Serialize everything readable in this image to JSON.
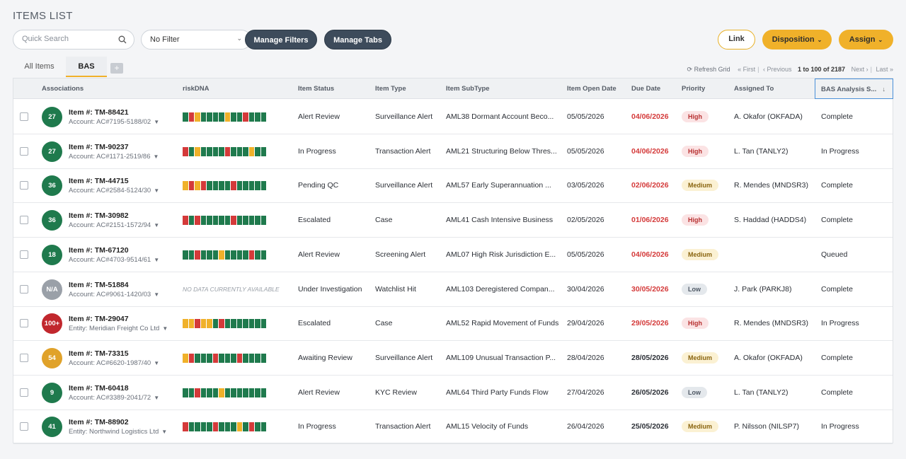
{
  "page_title": "ITEMS LIST",
  "toolbar": {
    "search_placeholder": "Quick Search",
    "filter_value": "No Filter",
    "manage_filters": "Manage Filters",
    "manage_tabs": "Manage Tabs",
    "link": "Link",
    "disposition": "Disposition",
    "assign": "Assign"
  },
  "tabs": [
    {
      "label": "All Items"
    },
    {
      "label": "BAS"
    }
  ],
  "tab_add": "+",
  "pager": {
    "refresh": "Refresh Grid",
    "first": "« First",
    "previous": "‹ Previous",
    "range": "1 to 100 of 2187",
    "next": "Next ›",
    "last": "Last »"
  },
  "columns": {
    "associations": "Associations",
    "riskdna": "riskDNA",
    "status": "Item Status",
    "type": "Item Type",
    "subtype": "Item SubType",
    "open_date": "Item Open Date",
    "due_date": "Due Date",
    "priority": "Priority",
    "assigned": "Assigned To",
    "bas": "BAS Analysis S..."
  },
  "colors": {
    "green": "#1f7a4d",
    "red": "#d43a3a",
    "amber": "#f0b12a",
    "grey": "#9aa0a8",
    "dark_red": "#c1272d",
    "gold_badge": "#e0a22a"
  },
  "rows": [
    {
      "score": "27",
      "badge_color": "#1f7a4d",
      "item": "Item #: TM-88421",
      "account": "Account: AC#7195-5188/02",
      "dna": "GRAGGGGAGGRGGG",
      "status": "Alert Review",
      "type": "Surveillance Alert",
      "subtype": "AML38 Dormant Account Beco...",
      "open": "05/05/2026",
      "due": "04/06/2026",
      "due_red": true,
      "priority": "High",
      "assigned": "A. Okafor (OKFADA)",
      "bas": "Complete"
    },
    {
      "score": "27",
      "badge_color": "#1f7a4d",
      "item": "Item #: TM-90237",
      "account": "Account: AC#1171-2519/86",
      "dna": "RGAGGGGRGGGAGG",
      "status": "In Progress",
      "type": "Transaction Alert",
      "subtype": "AML21 Structuring Below Thres...",
      "open": "05/05/2026",
      "due": "04/06/2026",
      "due_red": true,
      "priority": "High",
      "assigned": "L. Tan (TANLY2)",
      "bas": "In Progress"
    },
    {
      "score": "36",
      "badge_color": "#1f7a4d",
      "item": "Item #: TM-44715",
      "account": "Account: AC#2584-5124/30",
      "dna": "ARARGGGGRGGGGG",
      "status": "Pending QC",
      "type": "Surveillance Alert",
      "subtype": "AML57 Early Superannuation ...",
      "open": "03/05/2026",
      "due": "02/06/2026",
      "due_red": true,
      "priority": "Medium",
      "assigned": "R. Mendes (MNDSR3)",
      "bas": "Complete"
    },
    {
      "score": "36",
      "badge_color": "#1f7a4d",
      "item": "Item #: TM-30982",
      "account": "Account: AC#2151-1572/94",
      "dna": "RGRGGGGGRGGGGG",
      "status": "Escalated",
      "type": "Case",
      "subtype": "AML41 Cash Intensive Business",
      "open": "02/05/2026",
      "due": "01/06/2026",
      "due_red": true,
      "priority": "High",
      "assigned": "S. Haddad (HADDS4)",
      "bas": "Complete"
    },
    {
      "score": "18",
      "badge_color": "#1f7a4d",
      "item": "Item #: TM-67120",
      "account": "Account: AC#4703-9514/61",
      "dna": "GGRGGGAGGGGRGG",
      "status": "Alert Review",
      "type": "Screening Alert",
      "subtype": "AML07 High Risk Jurisdiction E...",
      "open": "05/05/2026",
      "due": "04/06/2026",
      "due_red": true,
      "priority": "Medium",
      "assigned": "",
      "bas": "Queued"
    },
    {
      "score": "N/A",
      "badge_color": "#9aa0a8",
      "item": "Item #: TM-51884",
      "account": "Account: AC#9061-1420/03",
      "dna": "",
      "nodata": "NO DATA CURRENTLY AVAILABLE",
      "status": "Under Investigation",
      "type": "Watchlist Hit",
      "subtype": "AML103 Deregistered Compan...",
      "open": "30/04/2026",
      "due": "30/05/2026",
      "due_red": true,
      "priority": "Low",
      "assigned": "J. Park (PARKJ8)",
      "bas": "Complete"
    },
    {
      "score": "100+",
      "badge_color": "#c1272d",
      "item": "Item #: TM-29047",
      "account": "Entity: Meridian Freight Co Ltd",
      "dna": "AARAAGRGGGGGGG",
      "status": "Escalated",
      "type": "Case",
      "subtype": "AML52 Rapid Movement of Funds",
      "open": "29/04/2026",
      "due": "29/05/2026",
      "due_red": true,
      "priority": "High",
      "assigned": "R. Mendes (MNDSR3)",
      "bas": "In Progress"
    },
    {
      "score": "54",
      "badge_color": "#e0a22a",
      "item": "Item #: TM-73315",
      "account": "Account: AC#6620-1987/40",
      "dna": "ARGGGRGGGRGGGG",
      "status": "Awaiting Review",
      "type": "Surveillance Alert",
      "subtype": "AML109 Unusual Transaction P...",
      "open": "28/04/2026",
      "due": "28/05/2026",
      "due_red": false,
      "priority": "Medium",
      "assigned": "A. Okafor (OKFADA)",
      "bas": "Complete"
    },
    {
      "score": "9",
      "badge_color": "#1f7a4d",
      "item": "Item #: TM-60418",
      "account": "Account: AC#3389-2041/72",
      "dna": "GGRGGGAGGGGGGG",
      "status": "Alert Review",
      "type": "KYC Review",
      "subtype": "AML64 Third Party Funds Flow",
      "open": "27/04/2026",
      "due": "26/05/2026",
      "due_red": false,
      "priority": "Low",
      "assigned": "L. Tan (TANLY2)",
      "bas": "Complete"
    },
    {
      "score": "41",
      "badge_color": "#1f7a4d",
      "item": "Item #: TM-88902",
      "account": "Entity: Northwind Logistics Ltd",
      "dna": "RGGGGRGGGAGRGG",
      "status": "In Progress",
      "type": "Transaction Alert",
      "subtype": "AML15 Velocity of Funds",
      "open": "26/04/2026",
      "due": "25/05/2026",
      "due_red": false,
      "priority": "Medium",
      "assigned": "P. Nilsson (NILSP7)",
      "bas": "In Progress"
    }
  ]
}
